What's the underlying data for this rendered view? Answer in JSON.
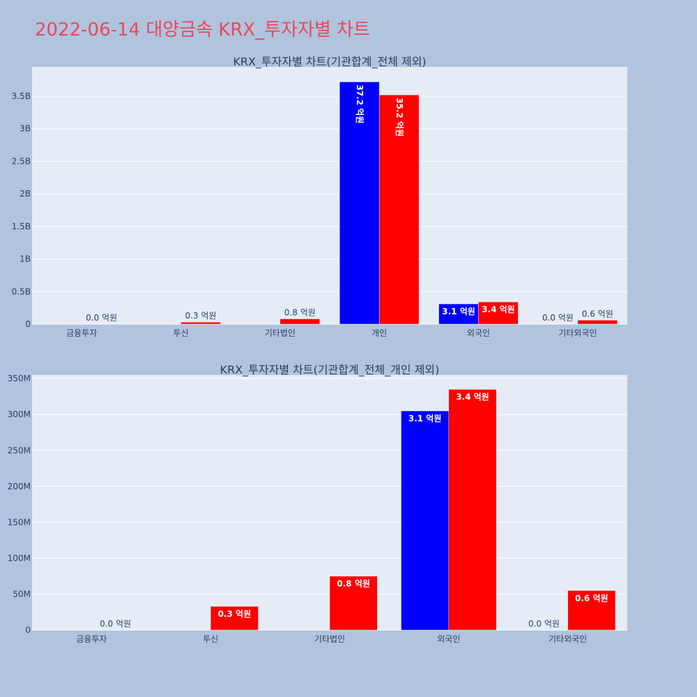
{
  "page": {
    "title": "2022-06-14 대양금속 KRX_투자자별 차트"
  },
  "colors": {
    "background": "#b0c4de",
    "plot_bg": "#e5ecf6",
    "grid": "#ffffff",
    "title": "#e8485a",
    "text": "#2a3f5f"
  },
  "chart_data": [
    {
      "type": "bar",
      "title": "KRX_투자자별 차트(기관합계_전체 제외)",
      "categories": [
        "금융투자",
        "투신",
        "기타법인",
        "개인",
        "외국인",
        "기타외국인"
      ],
      "ylim": [
        0,
        3950000000
      ],
      "yticks": [
        0,
        500000000,
        1000000000,
        1500000000,
        2000000000,
        2500000000,
        3000000000,
        3500000000
      ],
      "ytick_labels": [
        "0",
        "0.5B",
        "1B",
        "1.5B",
        "2B",
        "2.5B",
        "3B",
        "3.5B"
      ],
      "grid": true,
      "series": [
        {
          "color": "#0000ff",
          "values": [
            0,
            0,
            0,
            3720000000,
            310000000,
            0
          ],
          "labels": [
            "",
            "",
            "",
            "37.2 억원",
            "3.1 억원",
            "0.0 억원"
          ],
          "label_style": [
            "none",
            "none",
            "none",
            "inside-vertical",
            "inside",
            "outside"
          ]
        },
        {
          "color": "#ff0000",
          "values": [
            0,
            30000000,
            80000000,
            3520000000,
            340000000,
            60000000
          ],
          "labels": [
            "0.0 억원",
            "0.3 억원",
            "0.8 억원",
            "35.2 억원",
            "3.4 억원",
            "0.6 억원"
          ],
          "label_style": [
            "outside",
            "outside",
            "outside",
            "inside-vertical",
            "inside",
            "outside"
          ]
        }
      ]
    },
    {
      "type": "bar",
      "title": "KRX_투자자별 차트(기관합계_전체_개인 제외)",
      "categories": [
        "금융투자",
        "투신",
        "기타법인",
        "외국인",
        "기타외국인"
      ],
      "ylim": [
        0,
        355000000
      ],
      "yticks": [
        0,
        50000000,
        100000000,
        150000000,
        200000000,
        250000000,
        300000000,
        350000000
      ],
      "ytick_labels": [
        "0",
        "50M",
        "100M",
        "150M",
        "200M",
        "250M",
        "300M",
        "350M"
      ],
      "grid": true,
      "series": [
        {
          "color": "#0000ff",
          "values": [
            0,
            0,
            0,
            305000000,
            0
          ],
          "labels": [
            "",
            "",
            "",
            "3.1 억원",
            "0.0 억원"
          ],
          "label_style": [
            "none",
            "none",
            "none",
            "inside",
            "outside"
          ]
        },
        {
          "color": "#ff0000",
          "values": [
            0,
            33000000,
            75000000,
            335000000,
            55000000
          ],
          "labels": [
            "0.0 억원",
            "0.3 억원",
            "0.8 억원",
            "3.4 억원",
            "0.6 억원"
          ],
          "label_style": [
            "outside",
            "inside",
            "inside",
            "inside",
            "inside"
          ]
        }
      ]
    }
  ]
}
